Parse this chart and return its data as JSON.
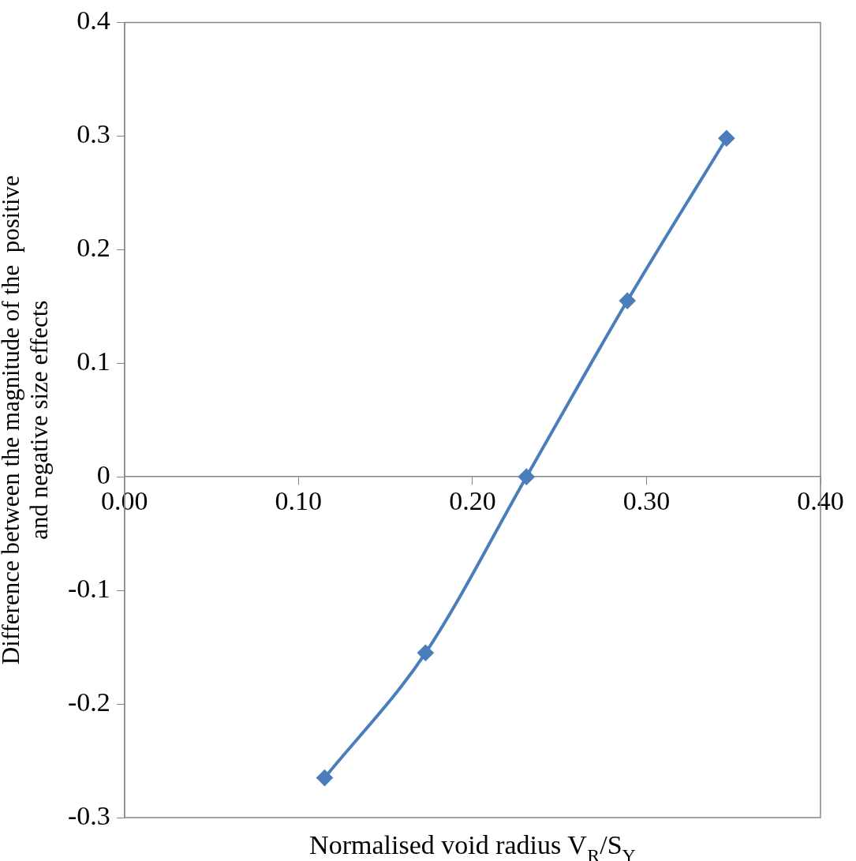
{
  "chart_data": {
    "type": "line",
    "xlabel": "Normalised void radius V$_{R}$/S$_{Y}$",
    "ylabel": "Difference between the magnitude of the  positive\nand negative size effects",
    "x": [
      0.115,
      0.173,
      0.231,
      0.289,
      0.346
    ],
    "series": [
      {
        "color": "#4a7ebb",
        "values": [
          -0.265,
          -0.155,
          0,
          0.155,
          0.298
        ]
      }
    ],
    "xlim": [
      0,
      0.4
    ],
    "xticks": [
      {
        "value": 0,
        "label": "0.00"
      },
      {
        "value": 0.1,
        "label": "0.10"
      },
      {
        "value": 0.2,
        "label": "0.20"
      },
      {
        "value": 0.3,
        "label": "0.30"
      },
      {
        "value": 0.4,
        "label": "0.40"
      }
    ],
    "ylim": [
      -0.3,
      0.4
    ],
    "yticks": [
      -0.3,
      -0.2,
      -0.1,
      0,
      0.1,
      0.2,
      0.3,
      0.4
    ],
    "grid": false,
    "legend": false,
    "marker": "diamond",
    "line_style": "solid"
  }
}
